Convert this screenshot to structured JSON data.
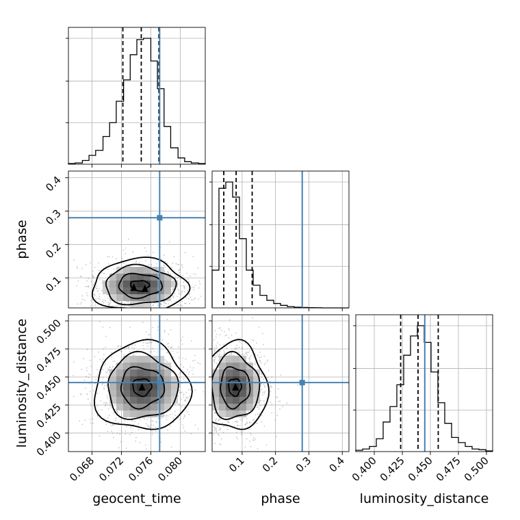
{
  "chart_data": {
    "type": "corner",
    "parameters": [
      {
        "name": "geocent_time",
        "label": "geocent_time",
        "range": [
          0.0648,
          0.0834
        ],
        "ticks": [
          0.068,
          0.072,
          0.076,
          0.08
        ],
        "tick_labels": [
          "0.068",
          "0.072",
          "0.076",
          "0.080"
        ],
        "truth": 0.0772,
        "median": 0.0747,
        "q_lower": 0.0722,
        "q_upper": 0.0771
      },
      {
        "name": "phase",
        "label": "phase",
        "range": [
          0.01,
          0.42
        ],
        "ticks": [
          0.1,
          0.2,
          0.3,
          0.4
        ],
        "tick_labels": [
          "0.1",
          "0.2",
          "0.3",
          "0.4"
        ],
        "truth": 0.28,
        "median": 0.082,
        "q_lower": 0.045,
        "q_upper": 0.13
      },
      {
        "name": "luminosity_distance",
        "label": "luminosity_distance",
        "range": [
          0.3835,
          0.5055
        ],
        "ticks": [
          0.4,
          0.425,
          0.45,
          0.475,
          0.5
        ],
        "tick_labels": [
          "0.400",
          "0.425",
          "0.450",
          "0.475",
          "0.500"
        ],
        "truth": 0.445,
        "median": 0.439,
        "q_lower": 0.4235,
        "q_upper": 0.457
      }
    ],
    "histograms": [
      {
        "param": "geocent_time",
        "bin_edges": [
          0.0648,
          0.0657,
          0.0667,
          0.0676,
          0.0685,
          0.0695,
          0.0704,
          0.0713,
          0.0723,
          0.0732,
          0.0741,
          0.075,
          0.076,
          0.0769,
          0.0778,
          0.0787,
          0.0797,
          0.0806,
          0.0815,
          0.0825,
          0.0834
        ],
        "counts": [
          0.005,
          0.01,
          0.03,
          0.07,
          0.11,
          0.22,
          0.33,
          0.5,
          0.67,
          0.87,
          0.99,
          1.0,
          0.82,
          0.6,
          0.3,
          0.13,
          0.05,
          0.02,
          0.01,
          0.005
        ]
      },
      {
        "param": "phase",
        "bin_edges": [
          0.01,
          0.0305,
          0.051,
          0.0715,
          0.092,
          0.1125,
          0.133,
          0.1535,
          0.174,
          0.1945,
          0.215,
          0.2355,
          0.256,
          0.2765,
          0.297,
          0.3175,
          0.338,
          0.3585,
          0.379,
          0.3995,
          0.42
        ],
        "counts": [
          0.3,
          0.95,
          1.0,
          0.88,
          0.55,
          0.3,
          0.18,
          0.1,
          0.06,
          0.035,
          0.02,
          0.01,
          0.005,
          0.003,
          0.002,
          0.001,
          0.0,
          0.0,
          0.0,
          0.0
        ]
      },
      {
        "param": "luminosity_distance",
        "bin_edges": [
          0.3835,
          0.3896,
          0.3957,
          0.4018,
          0.4079,
          0.414,
          0.4201,
          0.4262,
          0.4323,
          0.4384,
          0.4445,
          0.4506,
          0.4567,
          0.4628,
          0.4689,
          0.475,
          0.4811,
          0.4872,
          0.4933,
          0.4994,
          0.5055
        ],
        "counts": [
          0.01,
          0.02,
          0.04,
          0.1,
          0.23,
          0.35,
          0.52,
          0.75,
          0.9,
          0.98,
          0.85,
          0.62,
          0.38,
          0.22,
          0.11,
          0.07,
          0.04,
          0.02,
          0.015,
          0.005
        ]
      }
    ],
    "pairs": [
      {
        "x": "geocent_time",
        "y": "phase",
        "center": [
          0.0745,
          0.077
        ],
        "spread": [
          0.0028,
          0.034
        ],
        "peaks": [
          [
            0.0737,
            0.071
          ],
          [
            0.0752,
            0.068
          ]
        ]
      },
      {
        "x": "geocent_time",
        "y": "luminosity_distance",
        "center": [
          0.0748,
          0.441
        ],
        "spread": [
          0.0028,
          0.017
        ],
        "peaks": [
          [
            0.0748,
            0.441
          ]
        ]
      },
      {
        "x": "phase",
        "y": "luminosity_distance",
        "center": [
          0.078,
          0.441
        ],
        "spread": [
          0.042,
          0.017
        ],
        "peaks": [
          [
            0.08,
            0.441
          ]
        ]
      }
    ],
    "grid": true
  }
}
